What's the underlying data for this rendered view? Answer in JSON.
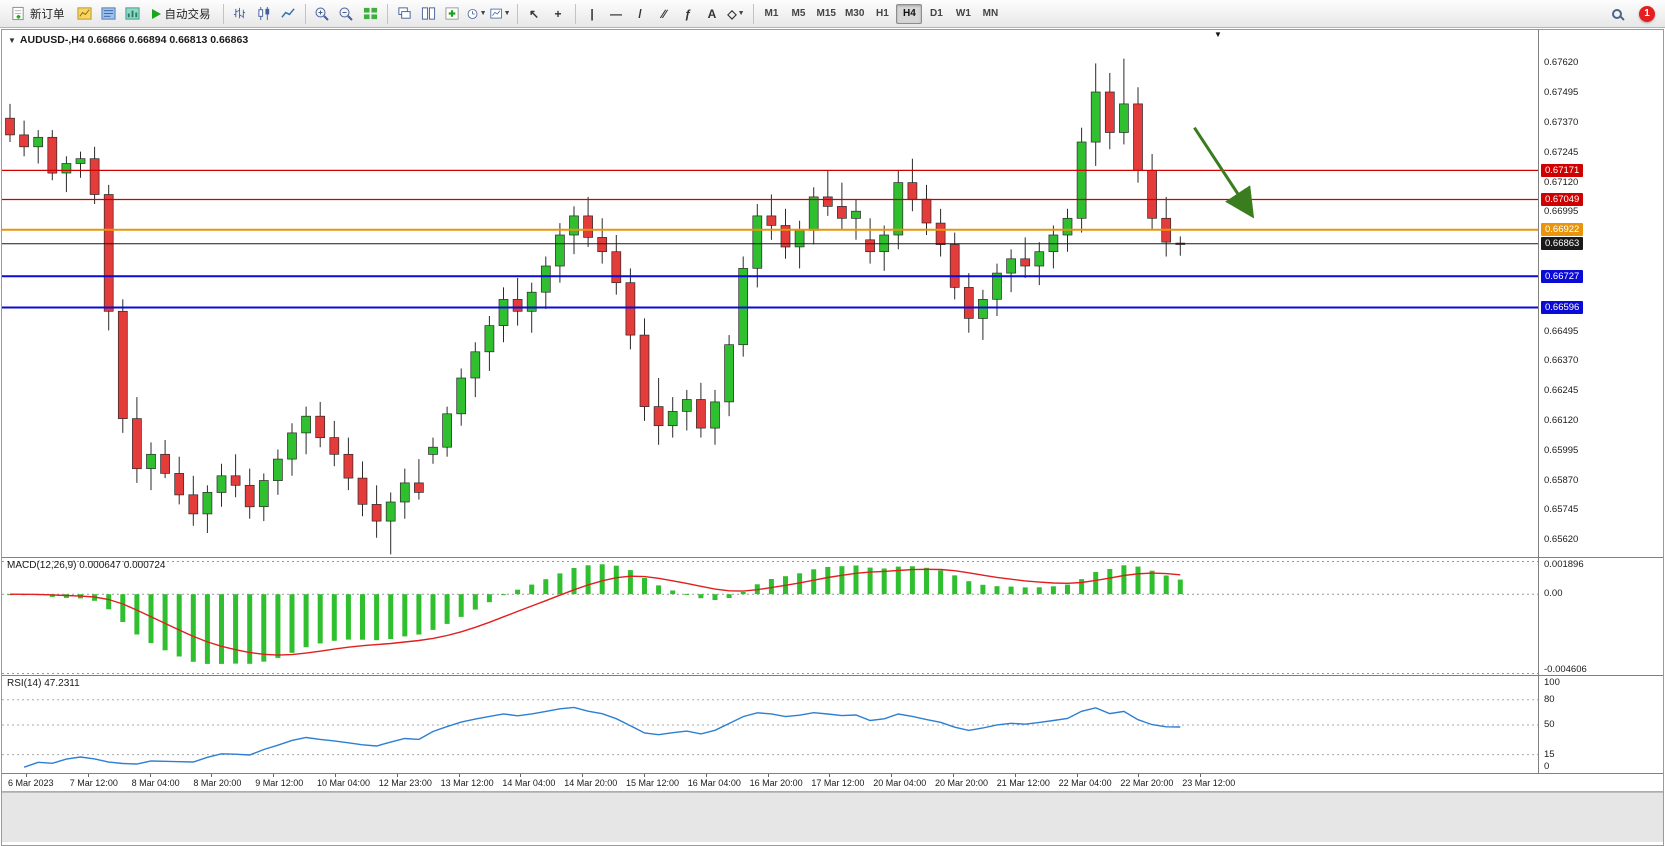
{
  "toolbar": {
    "new_order_label": "新订单",
    "auto_trading_label": "自动交易",
    "timeframes": [
      "M1",
      "M5",
      "M15",
      "M30",
      "H1",
      "H4",
      "D1",
      "W1",
      "MN"
    ],
    "active_timeframe": "H4",
    "notification_count": "1"
  },
  "icons": {
    "cursor": "↖",
    "crosshair": "+",
    "vertical_line": "|",
    "horizontal_line": "—",
    "trendline": "/",
    "channel": "∕∕",
    "fibonacci": "ƒ",
    "text_tool": "A",
    "shapes": "◇",
    "dropdown_glyph": "▼"
  },
  "chart_header": {
    "text": "AUDUSD-,H4 0.66866 0.66894 0.66813 0.66863"
  },
  "colors": {
    "bull": "#2fbf2f",
    "bear": "#e43b3b",
    "candle_outline": "#2a2a2a",
    "macd_bar": "#2fbf2f",
    "macd_signal": "#e02020",
    "rsi_line": "#2d7fd3",
    "arrow": "#3a7d1e"
  },
  "chart_data": {
    "type": "candlestick",
    "symbol": "AUDUSD-",
    "timeframe": "H4",
    "ohlc_header": {
      "open": "0.66866",
      "high": "0.66894",
      "low": "0.66813",
      "close": "0.66863"
    },
    "y_axis": {
      "min": 0.65545,
      "max": 0.6776,
      "ticks": [
        "0.67620",
        "0.67495",
        "0.67370",
        "0.67245",
        "0.67120",
        "0.66995",
        "0.66495",
        "0.66370",
        "0.66245",
        "0.66120",
        "0.65995",
        "0.65870",
        "0.65745",
        "0.65620"
      ]
    },
    "h_lines": [
      {
        "price": 0.67171,
        "label": "0.67171",
        "color": "#d10000",
        "width": 1.2,
        "role": "resistance"
      },
      {
        "price": 0.67049,
        "label": "0.67049",
        "color": "#d10000",
        "width": 1.2,
        "role": "resistance"
      },
      {
        "price": 0.66922,
        "label": "0.66922",
        "color": "#e8950c",
        "width": 2,
        "role": "pivot"
      },
      {
        "price": 0.66863,
        "label": "0.66863",
        "color": "#1a1a1a",
        "width": 1,
        "role": "bid"
      },
      {
        "price": 0.66727,
        "label": "0.66727",
        "color": "#0b0bd6",
        "width": 2,
        "role": "support"
      },
      {
        "price": 0.66596,
        "label": "0.66596",
        "color": "#0b0bd6",
        "width": 2,
        "role": "support"
      }
    ],
    "candles": [
      [
        0.6739,
        0.6745,
        0.6729,
        0.6732
      ],
      [
        0.6732,
        0.6738,
        0.6723,
        0.6727
      ],
      [
        0.6727,
        0.6734,
        0.672,
        0.6731
      ],
      [
        0.6731,
        0.6734,
        0.6713,
        0.6716
      ],
      [
        0.6716,
        0.6723,
        0.6708,
        0.672
      ],
      [
        0.672,
        0.6725,
        0.6714,
        0.6722
      ],
      [
        0.6722,
        0.6727,
        0.6703,
        0.6707
      ],
      [
        0.6707,
        0.6711,
        0.665,
        0.6658
      ],
      [
        0.6658,
        0.6663,
        0.6607,
        0.6613
      ],
      [
        0.6613,
        0.6622,
        0.6586,
        0.6592
      ],
      [
        0.6592,
        0.6603,
        0.6583,
        0.6598
      ],
      [
        0.6598,
        0.6604,
        0.6588,
        0.659
      ],
      [
        0.659,
        0.6597,
        0.6577,
        0.6581
      ],
      [
        0.6581,
        0.6589,
        0.6568,
        0.6573
      ],
      [
        0.6573,
        0.6585,
        0.6565,
        0.6582
      ],
      [
        0.6582,
        0.6594,
        0.6576,
        0.6589
      ],
      [
        0.6589,
        0.6598,
        0.658,
        0.6585
      ],
      [
        0.6585,
        0.6592,
        0.6571,
        0.6576
      ],
      [
        0.6576,
        0.659,
        0.657,
        0.6587
      ],
      [
        0.6587,
        0.66,
        0.6581,
        0.6596
      ],
      [
        0.6596,
        0.6611,
        0.6589,
        0.6607
      ],
      [
        0.6607,
        0.6618,
        0.6598,
        0.6614
      ],
      [
        0.6614,
        0.662,
        0.6601,
        0.6605
      ],
      [
        0.6605,
        0.6612,
        0.6593,
        0.6598
      ],
      [
        0.6598,
        0.6605,
        0.6583,
        0.6588
      ],
      [
        0.6588,
        0.6595,
        0.6572,
        0.6577
      ],
      [
        0.6577,
        0.6585,
        0.6563,
        0.657
      ],
      [
        0.657,
        0.6582,
        0.6556,
        0.6578
      ],
      [
        0.6578,
        0.6592,
        0.6571,
        0.6586
      ],
      [
        0.6586,
        0.6596,
        0.6579,
        0.6582
      ],
      [
        0.6598,
        0.6605,
        0.6594,
        0.6601
      ],
      [
        0.6601,
        0.6618,
        0.6597,
        0.6615
      ],
      [
        0.6615,
        0.6634,
        0.661,
        0.663
      ],
      [
        0.663,
        0.6645,
        0.6622,
        0.6641
      ],
      [
        0.6641,
        0.6656,
        0.6633,
        0.6652
      ],
      [
        0.6652,
        0.6668,
        0.6645,
        0.6663
      ],
      [
        0.6663,
        0.6672,
        0.6652,
        0.6658
      ],
      [
        0.6658,
        0.667,
        0.6649,
        0.6666
      ],
      [
        0.6666,
        0.6681,
        0.6659,
        0.6677
      ],
      [
        0.6677,
        0.6695,
        0.667,
        0.669
      ],
      [
        0.669,
        0.6702,
        0.6682,
        0.6698
      ],
      [
        0.6698,
        0.6706,
        0.6685,
        0.6689
      ],
      [
        0.6689,
        0.6697,
        0.6678,
        0.6683
      ],
      [
        0.6683,
        0.669,
        0.6665,
        0.667
      ],
      [
        0.667,
        0.6676,
        0.6642,
        0.6648
      ],
      [
        0.6648,
        0.6655,
        0.6612,
        0.6618
      ],
      [
        0.6618,
        0.663,
        0.6602,
        0.661
      ],
      [
        0.661,
        0.6622,
        0.6605,
        0.6616
      ],
      [
        0.6616,
        0.6625,
        0.6608,
        0.6621
      ],
      [
        0.6621,
        0.6628,
        0.6605,
        0.6609
      ],
      [
        0.6609,
        0.6625,
        0.6602,
        0.662
      ],
      [
        0.662,
        0.6648,
        0.6614,
        0.6644
      ],
      [
        0.6644,
        0.6681,
        0.6639,
        0.6676
      ],
      [
        0.6676,
        0.6703,
        0.6668,
        0.6698
      ],
      [
        0.6698,
        0.6707,
        0.6688,
        0.6694
      ],
      [
        0.6694,
        0.6701,
        0.668,
        0.6685
      ],
      [
        0.6685,
        0.6696,
        0.6676,
        0.6692
      ],
      [
        0.6692,
        0.671,
        0.6686,
        0.6706
      ],
      [
        0.6706,
        0.6717,
        0.6698,
        0.6702
      ],
      [
        0.6702,
        0.6712,
        0.6692,
        0.6697
      ],
      [
        0.6697,
        0.6705,
        0.6688,
        0.67
      ],
      [
        0.6688,
        0.6697,
        0.6678,
        0.6683
      ],
      [
        0.6683,
        0.6694,
        0.6675,
        0.669
      ],
      [
        0.669,
        0.6717,
        0.6684,
        0.6712
      ],
      [
        0.6712,
        0.6722,
        0.67,
        0.6705
      ],
      [
        0.6705,
        0.6711,
        0.669,
        0.6695
      ],
      [
        0.6695,
        0.6701,
        0.6681,
        0.6686
      ],
      [
        0.6686,
        0.6691,
        0.6663,
        0.6668
      ],
      [
        0.6668,
        0.6674,
        0.6649,
        0.6655
      ],
      [
        0.6655,
        0.6667,
        0.6646,
        0.6663
      ],
      [
        0.6663,
        0.6678,
        0.6656,
        0.6674
      ],
      [
        0.6674,
        0.6684,
        0.6666,
        0.668
      ],
      [
        0.668,
        0.6689,
        0.6672,
        0.6677
      ],
      [
        0.6677,
        0.6687,
        0.6669,
        0.6683
      ],
      [
        0.6683,
        0.6694,
        0.6676,
        0.669
      ],
      [
        0.669,
        0.6701,
        0.6683,
        0.6697
      ],
      [
        0.6697,
        0.6735,
        0.6691,
        0.6729
      ],
      [
        0.6729,
        0.6762,
        0.6719,
        0.675
      ],
      [
        0.675,
        0.6758,
        0.6726,
        0.6733
      ],
      [
        0.6733,
        0.6764,
        0.6728,
        0.6745
      ],
      [
        0.6745,
        0.6752,
        0.6712,
        0.6717
      ],
      [
        0.6717,
        0.6724,
        0.6692,
        0.6697
      ],
      [
        0.6697,
        0.6706,
        0.6681,
        0.6687
      ],
      [
        0.66866,
        0.66894,
        0.66813,
        0.66863
      ]
    ],
    "x_labels": [
      "6 Mar 2023",
      "7 Mar 12:00",
      "8 Mar 04:00",
      "8 Mar 20:00",
      "9 Mar 12:00",
      "10 Mar 04:00",
      "12 Mar 23:00",
      "13 Mar 12:00",
      "14 Mar 04:00",
      "14 Mar 20:00",
      "15 Mar 12:00",
      "16 Mar 04:00",
      "16 Mar 20:00",
      "17 Mar 12:00",
      "20 Mar 04:00",
      "20 Mar 20:00",
      "21 Mar 12:00",
      "22 Mar 04:00",
      "22 Mar 20:00",
      "23 Mar 12:00"
    ],
    "indicators": {
      "macd": {
        "label": "MACD(12,26,9) 0.000647 0.000724",
        "params": [
          12,
          26,
          9
        ],
        "main_value": "0.000647",
        "signal_value": "0.000724",
        "axis": [
          "0.001896",
          "0.00",
          "-0.004606"
        ],
        "range": {
          "max": 0.0021,
          "min": -0.00475
        }
      },
      "rsi": {
        "label": "RSI(14) 47.2311",
        "period": 14,
        "value": "47.2311",
        "axis": [
          "100",
          "80",
          "50",
          "15",
          "0"
        ],
        "levels": [
          80,
          50,
          15
        ],
        "range": {
          "max": 108,
          "min": -8
        }
      }
    },
    "annotation_arrow": {
      "from": {
        "index": 84,
        "price": 0.6735
      },
      "to": {
        "index": 88,
        "price": 0.6699
      },
      "color": "#3a7d1e",
      "direction": "down-right"
    }
  }
}
